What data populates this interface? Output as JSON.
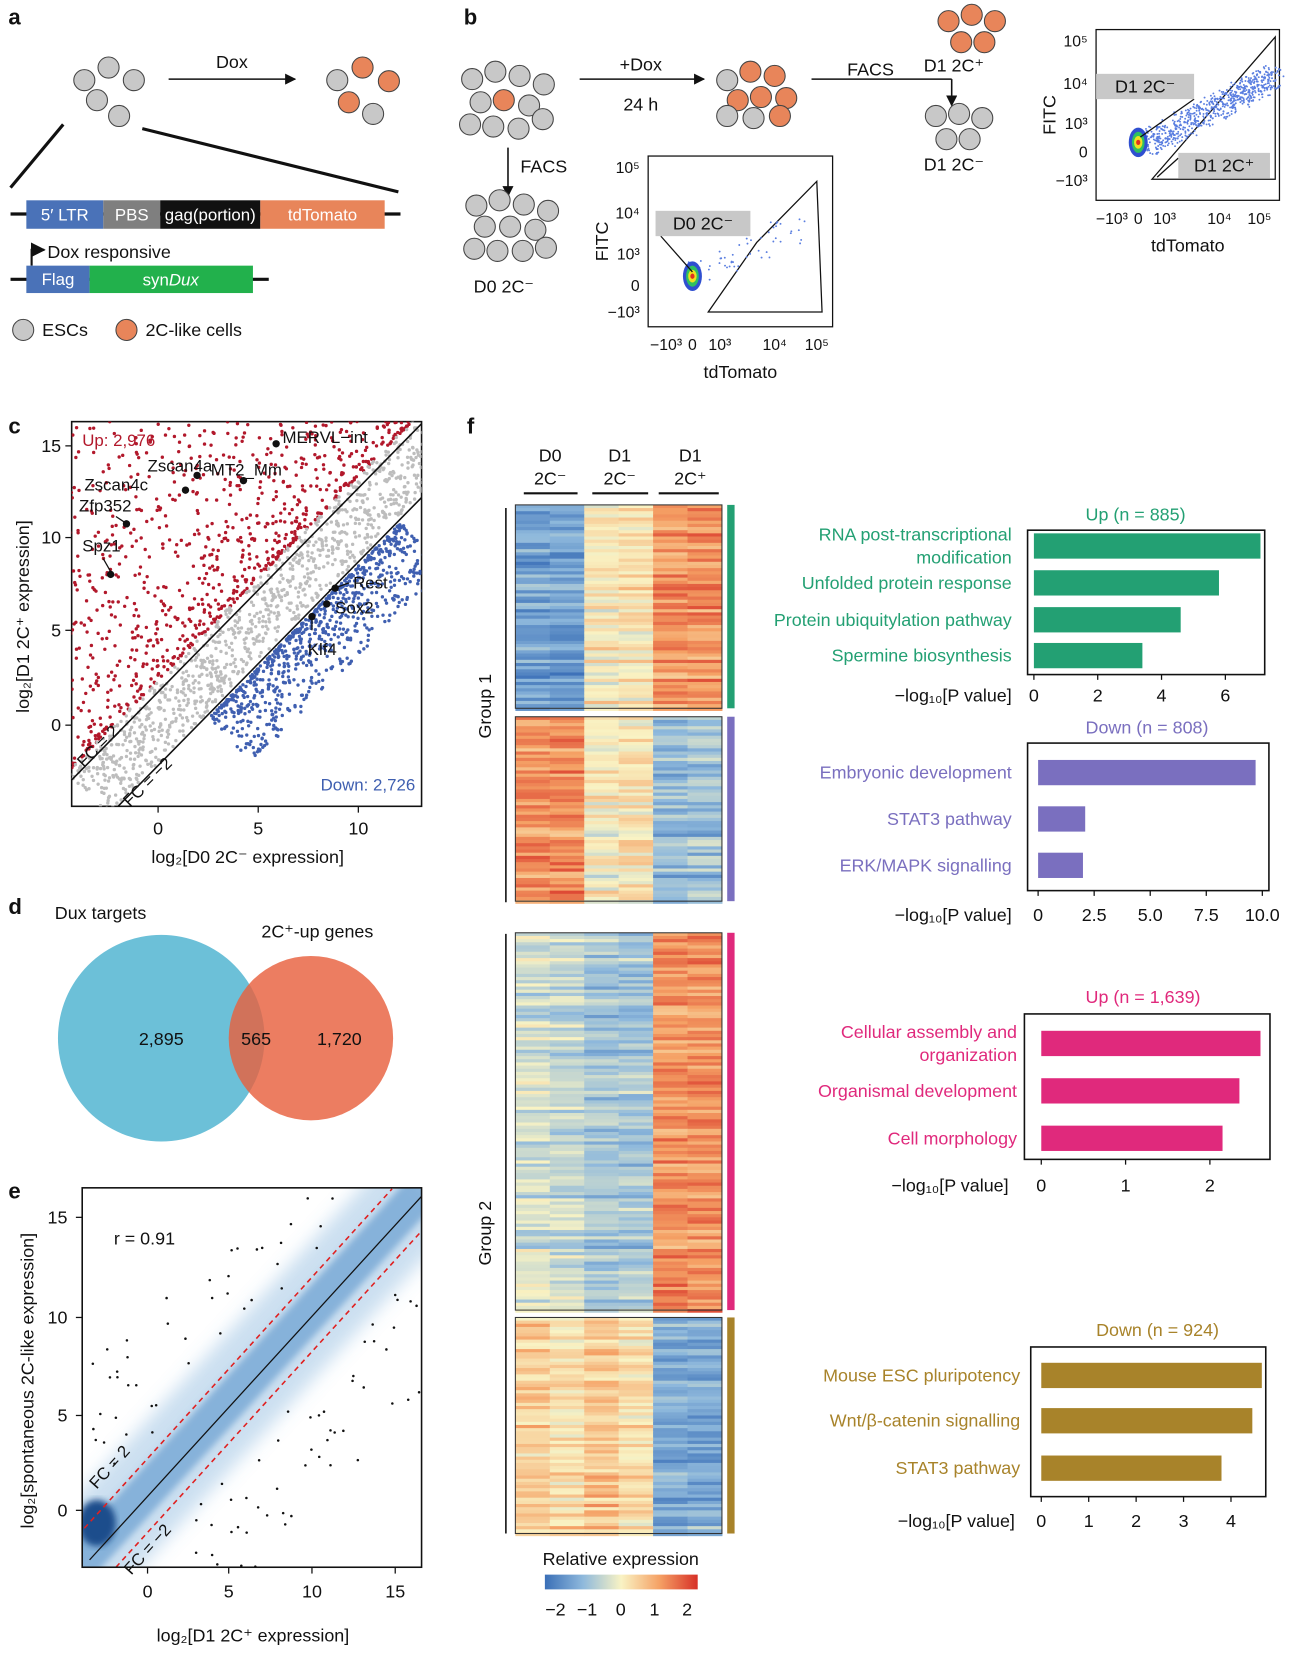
{
  "panel_labels": {
    "a": "a",
    "b": "b",
    "c": "c",
    "d": "d",
    "e": "e",
    "f": "f"
  },
  "a": {
    "treatment": "Dox",
    "construct": [
      "5′ LTR",
      "PBS",
      "gag(portion)",
      "tdTomato"
    ],
    "promoter": "Dox responsive",
    "tag": "Flag",
    "transgene": [
      "syn",
      "Dux"
    ],
    "legend": [
      "ESCs",
      "2C-like cells"
    ]
  },
  "b": {
    "treatment": "+Dox",
    "duration": "24 h",
    "sort": [
      "FACS",
      "FACS"
    ],
    "populations": {
      "d0": "D0 2C⁻",
      "d1_pos": "D1 2C⁺",
      "d1_neg": "D1 2C⁻"
    },
    "facs_plots": [
      {
        "gates": [
          "D0 2C⁻"
        ],
        "ylabel": "FITC",
        "xlabel": "tdTomato",
        "yticks": [
          "10⁵",
          "10⁴",
          "10³",
          "0",
          "−10³"
        ],
        "xticks": [
          "−10³",
          "0",
          "10³",
          "10⁴",
          "10⁵"
        ]
      },
      {
        "gates": [
          "D1 2C⁻",
          "D1 2C⁺"
        ],
        "ylabel": "FITC",
        "xlabel": "tdTomato",
        "yticks": [
          "10⁵",
          "10⁴",
          "10³",
          "0",
          "−10³"
        ],
        "xticks": [
          "−10³",
          "0",
          "10³",
          "10⁴",
          "10⁵"
        ]
      }
    ]
  },
  "c": {
    "up": "Up: 2,976",
    "down": "Down: 2,726",
    "genes": [
      "MERVL−int",
      "Zscan4a",
      "MT2_Mm",
      "Zscan4c",
      "Zfp352",
      "Spz1",
      "Rest",
      "Sox2",
      "Klf4"
    ],
    "fc_lines": [
      "FC = 2",
      "FC = −2"
    ],
    "xlabel": "log₂[D0 2C⁻ expression]",
    "ylabel": "log₂[D1 2C⁺ expression]",
    "xticks": [
      "0",
      "5",
      "10"
    ],
    "yticks": [
      "15",
      "10",
      "5",
      "0"
    ]
  },
  "d": {
    "left_title": "Dux targets",
    "right_title": "2C⁺-up genes",
    "left_only": "2,895",
    "overlap": "565",
    "right_only": "1,720"
  },
  "e": {
    "r": "r = 0.91",
    "fc_lines": [
      "FC = 2",
      "FC = −2"
    ],
    "xlabel": "log₂[D1 2C⁺ expression]",
    "ylabel": "log₂[spontaneous 2C-like expression]",
    "xticks": [
      "0",
      "5",
      "10",
      "15"
    ],
    "yticks": [
      "15",
      "10",
      "5",
      "0"
    ]
  },
  "f": {
    "columns": [
      [
        "D0",
        "2C⁻"
      ],
      [
        "D1",
        "2C⁻"
      ],
      [
        "D1",
        "2C⁺"
      ]
    ],
    "groups": [
      "Group 1",
      "Group 2"
    ],
    "colorbar": {
      "title": "Relative expression",
      "ticks": [
        "−2",
        "−1",
        "0",
        "1",
        "2"
      ]
    },
    "enrichment": [
      {
        "title": "Up (n = 885)",
        "color": "#23a073",
        "categories": [
          [
            "RNA post-transcriptional",
            "modification"
          ],
          "Unfolded protein response",
          "Protein ubiquitylation pathway",
          "Spermine biosynthesis"
        ],
        "values": [
          7.1,
          5.8,
          4.6,
          3.4
        ],
        "xlim": [
          0,
          7.2
        ],
        "xticks": [
          0,
          2,
          4,
          6
        ],
        "xlabel": "−log₁₀[P value]"
      },
      {
        "title": "Down (n = 808)",
        "color": "#7a6fbf",
        "categories": [
          "Embryonic development",
          "STAT3 pathway",
          "ERK/MAPK signalling"
        ],
        "values": [
          9.7,
          2.1,
          2.0
        ],
        "xlim": [
          0,
          10.2
        ],
        "xticks": [
          0,
          2.5,
          {
            "value": 5,
            "label": "5.0"
          },
          7.5,
          {
            "value": 10,
            "label": "10.0"
          }
        ],
        "xlabel": "−log₁₀[P value]"
      },
      {
        "title": "Up (n = 1,639)",
        "color": "#e0297c",
        "categories": [
          [
            "Cellular assembly and",
            "organization"
          ],
          "Organismal development",
          "Cell morphology"
        ],
        "values": [
          2.6,
          2.35,
          2.15
        ],
        "xlim": [
          0,
          2.7
        ],
        "xticks": [
          0,
          1,
          2
        ],
        "xlabel": "−log₁₀[P value]"
      },
      {
        "title": "Down (n = 924)",
        "color": "#a8832a",
        "categories": [
          "Mouse ESC pluripotency",
          "Wnt/β-catenin signalling",
          "STAT3 pathway"
        ],
        "values": [
          4.65,
          4.45,
          3.8
        ],
        "xlim": [
          0,
          4.7
        ],
        "xticks": [
          0,
          1,
          2,
          3,
          4
        ],
        "xlabel": "−log₁₀[P value]"
      }
    ]
  }
}
